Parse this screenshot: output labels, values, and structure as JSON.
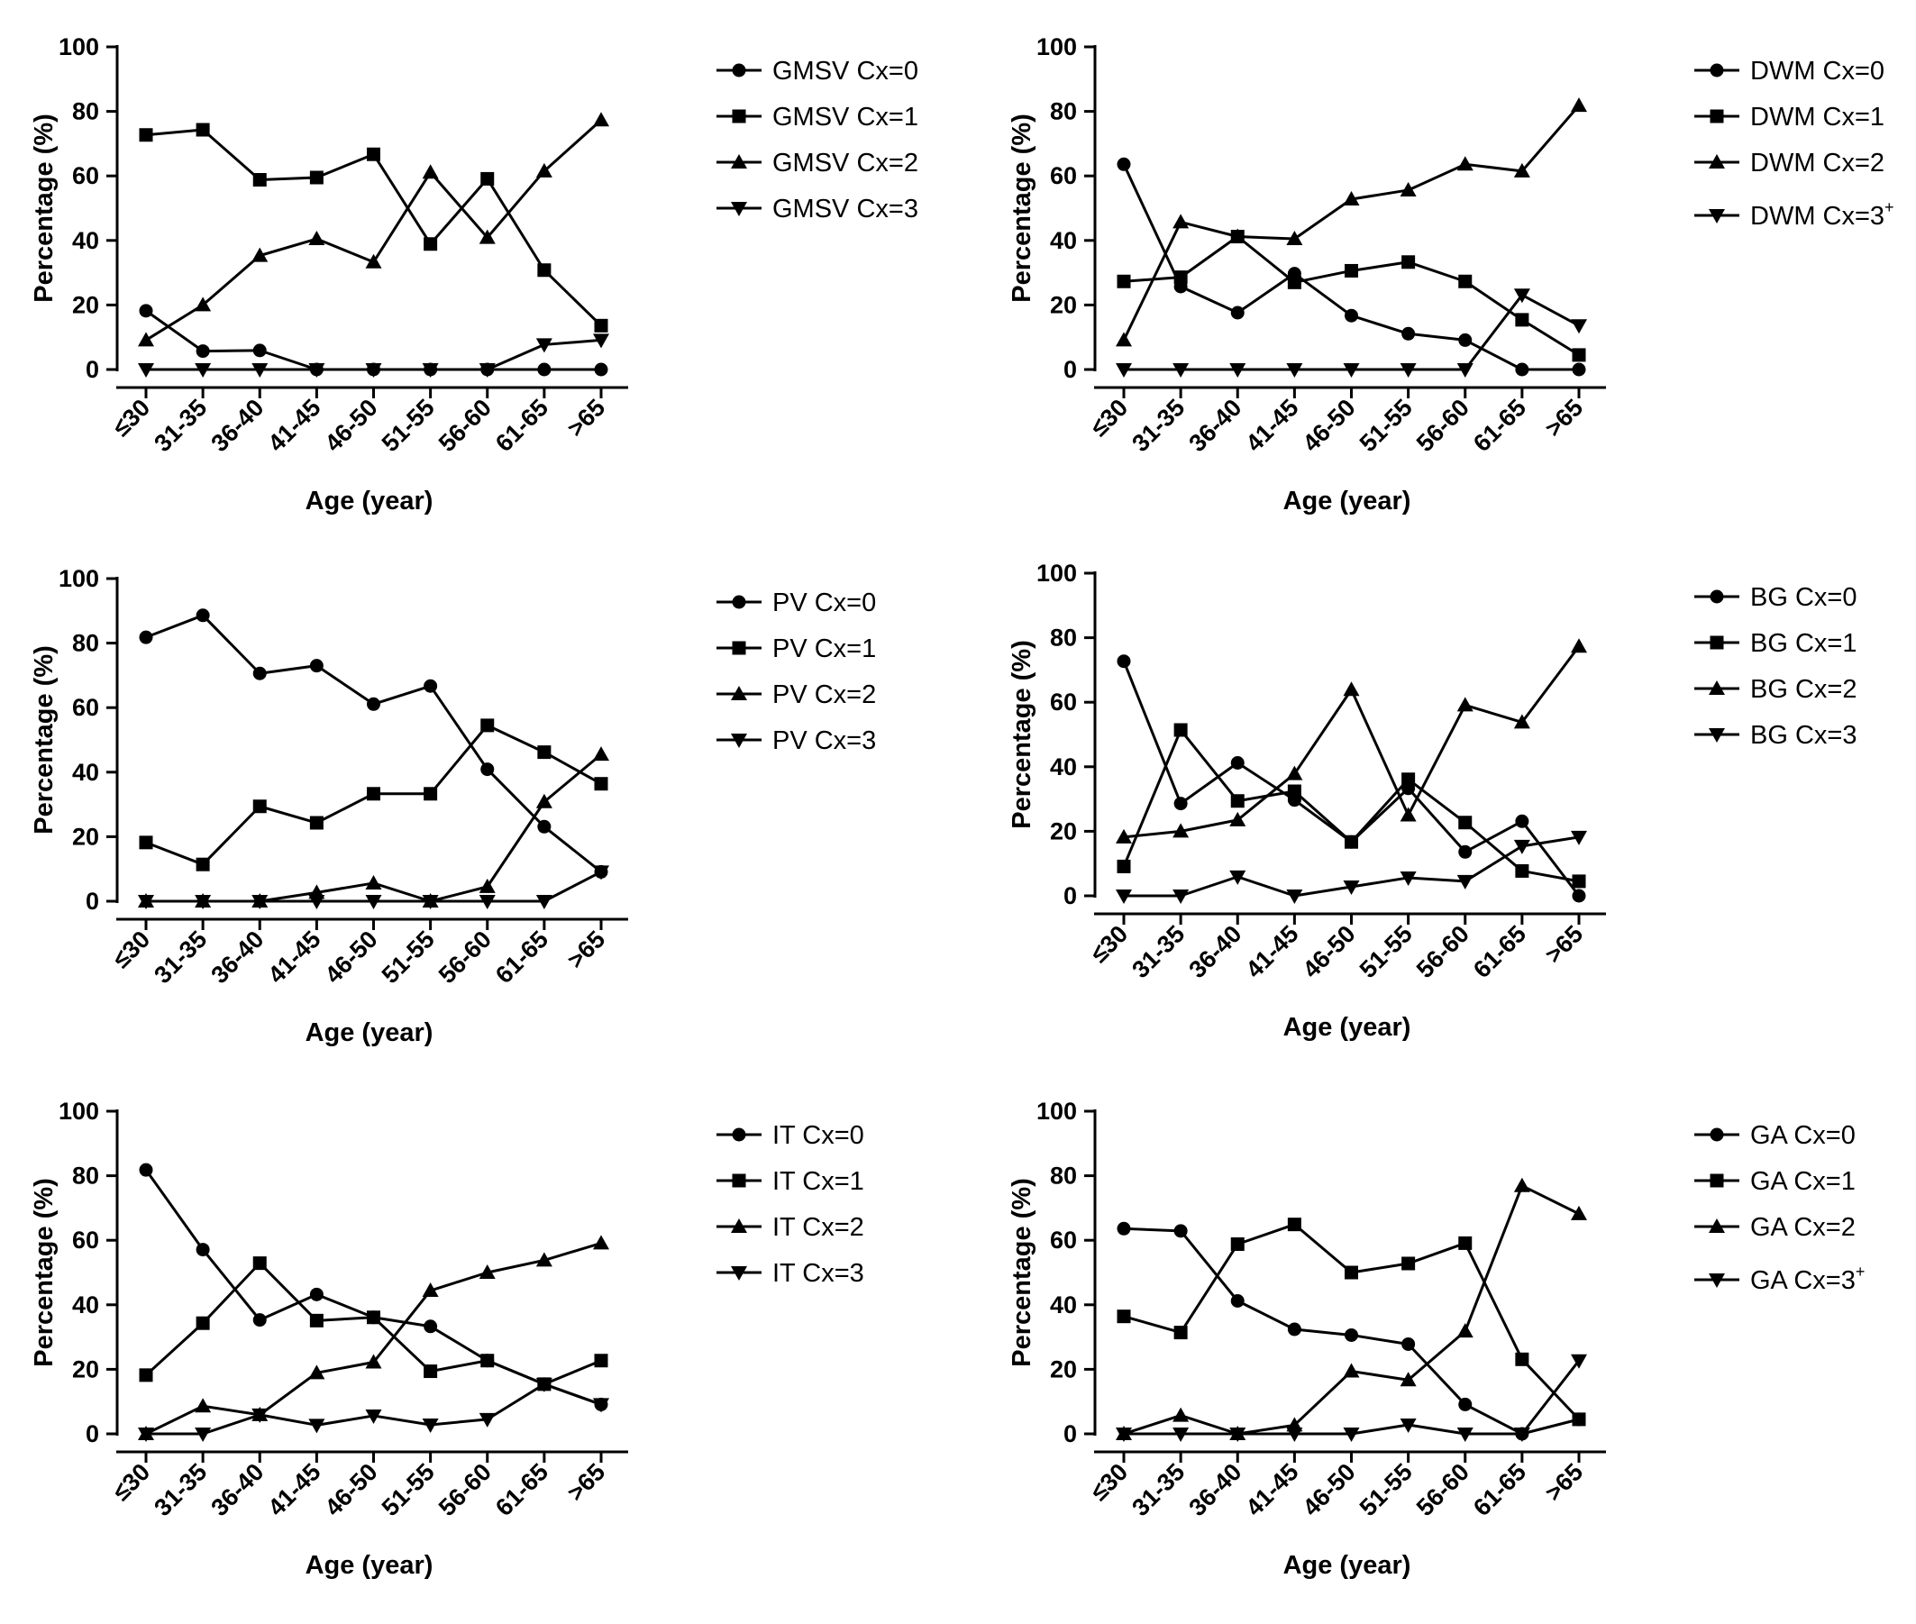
{
  "colors": {
    "ink": "#000000",
    "background": "#ffffff"
  },
  "chart_data": [
    {
      "type": "line",
      "xlabel": "Age (year)",
      "ylabel": "Percentage (%)",
      "ylim": [
        0,
        100
      ],
      "yticks": [
        "0",
        "20",
        "40",
        "60",
        "80",
        "100"
      ],
      "categories": [
        "≤30",
        "31-35",
        "36-40",
        "41-45",
        "46-50",
        "51-55",
        "56-60",
        "61-65",
        ">65"
      ],
      "legend_position": "right",
      "series": [
        {
          "name": "GMSV Cx=0",
          "sup": "",
          "marker": "circle",
          "values": [
            18.2,
            5.7,
            5.9,
            0,
            0,
            0,
            0,
            0,
            0
          ]
        },
        {
          "name": "GMSV Cx=1",
          "sup": "",
          "marker": "square",
          "values": [
            72.7,
            74.3,
            58.8,
            59.5,
            66.7,
            38.9,
            59.1,
            30.8,
            13.6
          ]
        },
        {
          "name": "GMSV Cx=2",
          "sup": "",
          "marker": "triangle-up",
          "values": [
            9.1,
            20.0,
            35.3,
            40.5,
            33.3,
            61.1,
            40.9,
            61.5,
            77.3
          ]
        },
        {
          "name": "GMSV Cx=3",
          "sup": "",
          "marker": "triangle-down",
          "values": [
            0,
            0,
            0,
            0,
            0,
            0,
            0,
            7.7,
            9.1
          ]
        }
      ]
    },
    {
      "type": "line",
      "xlabel": "Age (year)",
      "ylabel": "Percentage (%)",
      "ylim": [
        0,
        100
      ],
      "yticks": [
        "0",
        "20",
        "40",
        "60",
        "80",
        "100"
      ],
      "categories": [
        "≤30",
        "31-35",
        "36-40",
        "41-45",
        "46-50",
        "51-55",
        "56-60",
        "61-65",
        ">65"
      ],
      "legend_position": "right",
      "series": [
        {
          "name": "DWM Cx=0",
          "sup": "",
          "marker": "circle",
          "values": [
            63.6,
            25.7,
            17.6,
            29.7,
            16.7,
            11.1,
            9.1,
            0,
            0
          ]
        },
        {
          "name": "DWM Cx=1",
          "sup": "",
          "marker": "square",
          "values": [
            27.3,
            28.6,
            41.2,
            27.0,
            30.6,
            33.3,
            27.3,
            15.4,
            4.5
          ]
        },
        {
          "name": "DWM Cx=2",
          "sup": "",
          "marker": "triangle-up",
          "values": [
            9.1,
            45.7,
            41.2,
            40.5,
            52.8,
            55.6,
            63.6,
            61.5,
            81.8
          ]
        },
        {
          "name": "DWM Cx=3",
          "sup": "+",
          "marker": "triangle-down",
          "values": [
            0,
            0,
            0,
            0,
            0,
            0,
            0,
            23.1,
            13.6
          ]
        }
      ]
    },
    {
      "type": "line",
      "xlabel": "Age (year)",
      "ylabel": "Percentage (%)",
      "ylim": [
        0,
        100
      ],
      "yticks": [
        "0",
        "20",
        "40",
        "60",
        "80",
        "100"
      ],
      "categories": [
        "≤30",
        "31-35",
        "36-40",
        "41-45",
        "46-50",
        "51-55",
        "56-60",
        "61-65",
        ">65"
      ],
      "legend_position": "right",
      "series": [
        {
          "name": "PV Cx=0",
          "sup": "",
          "marker": "circle",
          "values": [
            81.8,
            88.6,
            70.6,
            73.0,
            61.1,
            66.7,
            40.9,
            23.1,
            9.1
          ]
        },
        {
          "name": "PV Cx=1",
          "sup": "",
          "marker": "square",
          "values": [
            18.2,
            11.4,
            29.4,
            24.3,
            33.3,
            33.3,
            54.5,
            46.2,
            36.4
          ]
        },
        {
          "name": "PV Cx=2",
          "sup": "",
          "marker": "triangle-up",
          "values": [
            0,
            0,
            0,
            2.7,
            5.6,
            0,
            4.5,
            30.8,
            45.5
          ]
        },
        {
          "name": "PV Cx=3",
          "sup": "",
          "marker": "triangle-down",
          "values": [
            0,
            0,
            0,
            0,
            0,
            0,
            0,
            0,
            9.1
          ]
        }
      ]
    },
    {
      "type": "line",
      "xlabel": "Age (year)",
      "ylabel": "Percentage (%)",
      "ylim": [
        0,
        100
      ],
      "yticks": [
        "0",
        "20",
        "40",
        "60",
        "80",
        "100"
      ],
      "categories": [
        "≤30",
        "31-35",
        "36-40",
        "41-45",
        "46-50",
        "51-55",
        "56-60",
        "61-65",
        ">65"
      ],
      "legend_position": "right",
      "series": [
        {
          "name": "BG Cx=0",
          "sup": "",
          "marker": "circle",
          "values": [
            72.7,
            28.6,
            41.2,
            29.7,
            16.7,
            33.3,
            13.6,
            23.1,
            0
          ]
        },
        {
          "name": "BG Cx=1",
          "sup": "",
          "marker": "square",
          "values": [
            9.1,
            51.4,
            29.4,
            32.4,
            16.7,
            36.1,
            22.7,
            7.7,
            4.5
          ]
        },
        {
          "name": "BG Cx=2",
          "sup": "",
          "marker": "triangle-up",
          "values": [
            18.2,
            20.0,
            23.5,
            37.8,
            63.9,
            25.0,
            59.1,
            53.8,
            77.3
          ]
        },
        {
          "name": "BG Cx=3",
          "sup": "",
          "marker": "triangle-down",
          "values": [
            0,
            0,
            5.9,
            0,
            2.8,
            5.6,
            4.5,
            15.4,
            18.2
          ]
        }
      ]
    },
    {
      "type": "line",
      "xlabel": "Age (year)",
      "ylabel": "Percentage (%)",
      "ylim": [
        0,
        100
      ],
      "yticks": [
        "0",
        "20",
        "40",
        "60",
        "80",
        "100"
      ],
      "categories": [
        "≤30",
        "31-35",
        "36-40",
        "41-45",
        "46-50",
        "51-55",
        "56-60",
        "61-65",
        ">65"
      ],
      "legend_position": "right",
      "series": [
        {
          "name": "IT Cx=0",
          "sup": "",
          "marker": "circle",
          "values": [
            81.8,
            57.1,
            35.3,
            43.2,
            36.1,
            33.3,
            22.7,
            15.4,
            9.1
          ]
        },
        {
          "name": "IT Cx=1",
          "sup": "",
          "marker": "square",
          "values": [
            18.2,
            34.3,
            52.9,
            35.1,
            36.1,
            19.4,
            22.7,
            15.4,
            22.7
          ]
        },
        {
          "name": "IT Cx=2",
          "sup": "",
          "marker": "triangle-up",
          "values": [
            0,
            8.6,
            5.9,
            18.9,
            22.2,
            44.4,
            50.0,
            53.8,
            59.1
          ]
        },
        {
          "name": "IT Cx=3",
          "sup": "",
          "marker": "triangle-down",
          "values": [
            0,
            0,
            5.9,
            2.7,
            5.6,
            2.8,
            4.5,
            15.4,
            9.1
          ]
        }
      ]
    },
    {
      "type": "line",
      "xlabel": "Age (year)",
      "ylabel": "Percentage (%)",
      "ylim": [
        0,
        100
      ],
      "yticks": [
        "0",
        "20",
        "40",
        "60",
        "80",
        "100"
      ],
      "categories": [
        "≤30",
        "31-35",
        "36-40",
        "41-45",
        "46-50",
        "51-55",
        "56-60",
        "61-65",
        ">65"
      ],
      "legend_position": "right",
      "series": [
        {
          "name": "GA Cx=0",
          "sup": "",
          "marker": "circle",
          "values": [
            63.6,
            62.9,
            41.2,
            32.4,
            30.6,
            27.8,
            9.1,
            0,
            4.5
          ]
        },
        {
          "name": "GA Cx=1",
          "sup": "",
          "marker": "square",
          "values": [
            36.4,
            31.4,
            58.8,
            64.9,
            50.0,
            52.8,
            59.1,
            23.1,
            4.5
          ]
        },
        {
          "name": "GA Cx=2",
          "sup": "",
          "marker": "triangle-up",
          "values": [
            0,
            5.7,
            0,
            2.7,
            19.4,
            16.7,
            31.8,
            76.9,
            68.2
          ]
        },
        {
          "name": "GA Cx=3",
          "sup": "+",
          "marker": "triangle-down",
          "values": [
            0,
            0,
            0,
            0,
            0,
            2.8,
            0,
            0,
            22.7
          ]
        }
      ]
    }
  ]
}
